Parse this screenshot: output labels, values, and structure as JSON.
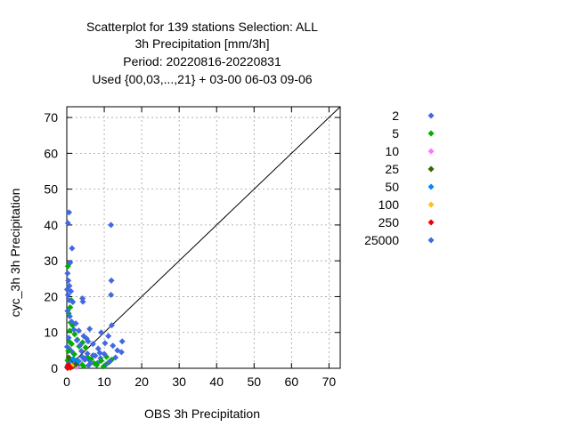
{
  "chart_data": {
    "type": "scatter",
    "title_lines": [
      "Scatterplot for  139 stations Selection: ALL",
      "3h Precipitation [mm/3h]",
      "Period: 20220816-20220831",
      "Used {00,03,...,21} + 03-00 06-03 09-06"
    ],
    "xlabel": "OBS 3h Precipitation",
    "ylabel": "cyc_3h 3h Precipitation",
    "xlim": [
      0,
      73
    ],
    "ylim": [
      0,
      73
    ],
    "xticks": [
      0,
      10,
      20,
      30,
      40,
      50,
      60,
      70
    ],
    "yticks": [
      0,
      10,
      20,
      30,
      40,
      50,
      60,
      70
    ],
    "grid": true,
    "diagonal": true,
    "legend_position": "right",
    "series": [
      {
        "name": "2",
        "color": "#4169e1",
        "points": [
          [
            0.1,
            0.3
          ],
          [
            0.3,
            0.8
          ],
          [
            0.5,
            1.5
          ],
          [
            1.2,
            0.6
          ],
          [
            1.8,
            1.2
          ],
          [
            2.4,
            2.1
          ],
          [
            3.0,
            0.9
          ],
          [
            3.5,
            1.8
          ],
          [
            4.1,
            3.2
          ],
          [
            4.8,
            2.4
          ],
          [
            5.5,
            4.1
          ],
          [
            6.1,
            2.2
          ],
          [
            7.0,
            3.6
          ],
          [
            8.2,
            1.5
          ],
          [
            9.0,
            2.8
          ],
          [
            10.5,
            1.1
          ],
          [
            0.6,
            5.5
          ],
          [
            1.4,
            4.6
          ]
        ]
      },
      {
        "name": "5",
        "color": "#00b000",
        "points": [
          [
            0.2,
            2.2
          ],
          [
            0.4,
            4.8
          ],
          [
            0.6,
            7.5
          ],
          [
            0.8,
            10.5
          ],
          [
            1.0,
            12.8
          ],
          [
            0.5,
            15.3
          ],
          [
            0.9,
            17.0
          ],
          [
            1.2,
            19.0
          ],
          [
            0.3,
            28.5
          ],
          [
            1.5,
            12.0
          ],
          [
            2.1,
            9.5
          ],
          [
            2.8,
            8.0
          ],
          [
            3.3,
            6.1
          ],
          [
            4.2,
            7.2
          ],
          [
            5.0,
            5.8
          ],
          [
            5.6,
            3.0
          ],
          [
            6.5,
            2.5
          ],
          [
            7.3,
            1.4
          ],
          [
            8.0,
            0.9
          ],
          [
            9.2,
            2.1
          ],
          [
            9.8,
            0.5
          ],
          [
            10.6,
            3.2
          ],
          [
            11.3,
            1.7
          ],
          [
            12.0,
            2.4
          ],
          [
            3.8,
            1.3
          ],
          [
            4.5,
            0.6
          ],
          [
            2.0,
            3.9
          ],
          [
            1.3,
            6.8
          ]
        ]
      },
      {
        "name": "10",
        "color": "#ff77ff",
        "points": [
          [
            0.4,
            1.0
          ],
          [
            1.1,
            0.5
          ],
          [
            2.0,
            0.8
          ],
          [
            2.6,
            0.3
          ],
          [
            3.4,
            1.9
          ]
        ]
      },
      {
        "name": "25",
        "color": "#2e6b00",
        "points": [
          [
            0.2,
            0.4
          ],
          [
            0.5,
            3.0
          ],
          [
            0.7,
            0.9
          ],
          [
            1.0,
            1.8
          ],
          [
            1.6,
            0.5
          ],
          [
            2.5,
            1.2
          ]
        ]
      },
      {
        "name": "50",
        "color": "#0088ff",
        "points": [
          [
            0.3,
            0.6
          ],
          [
            0.8,
            1.4
          ],
          [
            1.7,
            2.6
          ],
          [
            3.1,
            2.0
          ]
        ]
      },
      {
        "name": "100",
        "color": "#ffc020",
        "points": [
          [
            0.5,
            0.2
          ],
          [
            1.3,
            0.7
          ]
        ]
      },
      {
        "name": "250",
        "color": "#ee0000",
        "points": [
          [
            0.2,
            0.1
          ],
          [
            0.6,
            0.4
          ],
          [
            1.0,
            0.2
          ],
          [
            0.4,
            0.9
          ]
        ]
      },
      {
        "name": "25000",
        "color": "#4169e1",
        "points": [
          [
            0.3,
            40.5
          ],
          [
            0.6,
            43.5
          ],
          [
            1.4,
            33.5
          ],
          [
            0.9,
            29.5
          ],
          [
            0.2,
            26.5
          ],
          [
            0.4,
            24.5
          ],
          [
            0.7,
            23.0
          ],
          [
            0.1,
            22.0
          ],
          [
            1.1,
            21.5
          ],
          [
            0.3,
            20.5
          ],
          [
            0.6,
            19.0
          ],
          [
            1.6,
            18.5
          ],
          [
            4.2,
            19.5
          ],
          [
            4.3,
            18.6
          ],
          [
            11.8,
            40.0
          ],
          [
            11.9,
            24.5
          ],
          [
            11.8,
            20.5
          ],
          [
            0.2,
            16.0
          ],
          [
            0.8,
            14.5
          ],
          [
            1.3,
            13.0
          ],
          [
            2.4,
            12.5
          ],
          [
            3.2,
            10.5
          ],
          [
            4.5,
            9.0
          ],
          [
            5.3,
            8.3
          ],
          [
            6.1,
            11.0
          ],
          [
            5.7,
            7.5
          ],
          [
            7.0,
            6.8
          ],
          [
            8.4,
            5.5
          ],
          [
            9.2,
            10.0
          ],
          [
            10.2,
            7.0
          ],
          [
            11.1,
            9.0
          ],
          [
            12.0,
            12.0
          ],
          [
            12.3,
            6.3
          ],
          [
            13.5,
            5.0
          ],
          [
            14.6,
            4.5
          ],
          [
            14.8,
            7.5
          ],
          [
            13.0,
            3.0
          ],
          [
            11.5,
            2.0
          ],
          [
            10.0,
            4.0
          ],
          [
            8.8,
            4.3
          ],
          [
            7.6,
            3.5
          ],
          [
            6.4,
            1.5
          ],
          [
            5.8,
            0.8
          ],
          [
            3.6,
            6.5
          ],
          [
            2.7,
            7.8
          ],
          [
            1.9,
            10.8
          ],
          [
            0.5,
            8.5
          ],
          [
            0.1,
            6.0
          ],
          [
            4.9,
            2.8
          ],
          [
            3.9,
            4.8
          ]
        ]
      }
    ]
  }
}
